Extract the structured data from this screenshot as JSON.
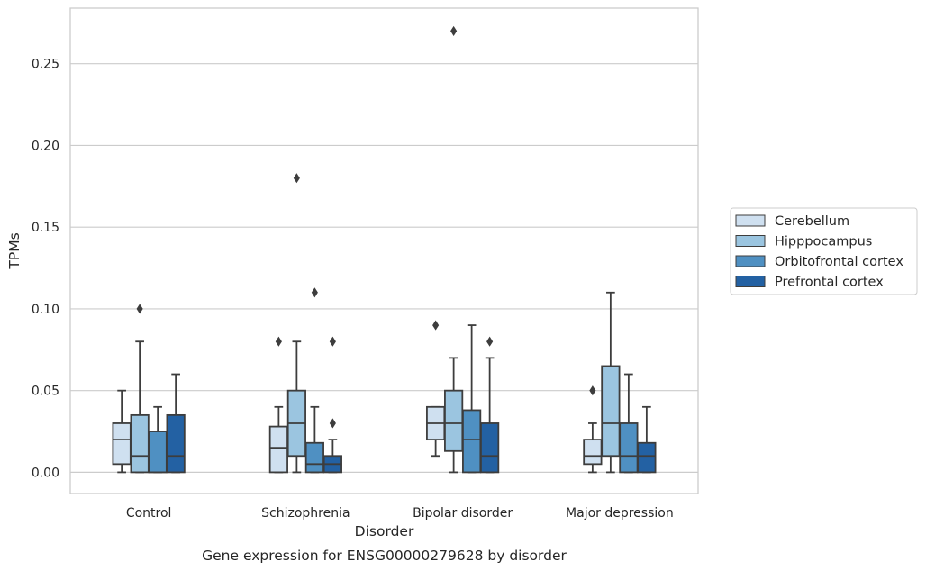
{
  "caption": "Gene expression for ENSG00000279628 by disorder",
  "colors": {
    "Cerebellum": "#cfe0f0",
    "Hipppocampus": "#9bc5e0",
    "Orbitofrontal cortex": "#4f90c2",
    "Prefrontal cortex": "#2361a3",
    "outline": "#3d3d3d",
    "grid": "#cccccc"
  },
  "chart_data": {
    "type": "box",
    "title": "",
    "xlabel": "Disorder",
    "ylabel": "TPMs",
    "ylim": [
      -0.013,
      0.284
    ],
    "yticks": [
      0.0,
      0.05,
      0.1,
      0.15,
      0.2,
      0.25
    ],
    "ytick_labels": [
      "0.00",
      "0.05",
      "0.10",
      "0.15",
      "0.20",
      "0.25"
    ],
    "grid": true,
    "legend_position": "center-right-outside",
    "categories": [
      "Control",
      "Schizophrenia",
      "Bipolar disorder",
      "Major depression"
    ],
    "series": [
      {
        "name": "Cerebellum",
        "boxes": [
          {
            "whislo": 0.0,
            "q1": 0.005,
            "med": 0.02,
            "q3": 0.03,
            "whishi": 0.05,
            "fliers": []
          },
          {
            "whislo": 0.0,
            "q1": 0.0,
            "med": 0.015,
            "q3": 0.028,
            "whishi": 0.04,
            "fliers": [
              0.08
            ]
          },
          {
            "whislo": 0.01,
            "q1": 0.02,
            "med": 0.03,
            "q3": 0.04,
            "whishi": 0.04,
            "fliers": [
              0.09
            ]
          },
          {
            "whislo": 0.0,
            "q1": 0.005,
            "med": 0.01,
            "q3": 0.02,
            "whishi": 0.03,
            "fliers": [
              0.05
            ]
          }
        ]
      },
      {
        "name": "Hipppocampus",
        "boxes": [
          {
            "whislo": 0.0,
            "q1": 0.0,
            "med": 0.01,
            "q3": 0.035,
            "whishi": 0.08,
            "fliers": [
              0.1
            ]
          },
          {
            "whislo": 0.0,
            "q1": 0.01,
            "med": 0.03,
            "q3": 0.05,
            "whishi": 0.08,
            "fliers": [
              0.18
            ]
          },
          {
            "whislo": 0.0,
            "q1": 0.013,
            "med": 0.03,
            "q3": 0.05,
            "whishi": 0.07,
            "fliers": [
              0.27
            ]
          },
          {
            "whislo": 0.0,
            "q1": 0.01,
            "med": 0.03,
            "q3": 0.065,
            "whishi": 0.11,
            "fliers": []
          }
        ]
      },
      {
        "name": "Orbitofrontal cortex",
        "boxes": [
          {
            "whislo": 0.0,
            "q1": 0.0,
            "med": 0.0,
            "q3": 0.025,
            "whishi": 0.04,
            "fliers": []
          },
          {
            "whislo": 0.0,
            "q1": 0.0,
            "med": 0.005,
            "q3": 0.018,
            "whishi": 0.04,
            "fliers": [
              0.11
            ]
          },
          {
            "whislo": 0.0,
            "q1": 0.0,
            "med": 0.02,
            "q3": 0.038,
            "whishi": 0.09,
            "fliers": []
          },
          {
            "whislo": 0.0,
            "q1": 0.0,
            "med": 0.01,
            "q3": 0.03,
            "whishi": 0.06,
            "fliers": []
          }
        ]
      },
      {
        "name": "Prefrontal cortex",
        "boxes": [
          {
            "whislo": 0.0,
            "q1": 0.0,
            "med": 0.01,
            "q3": 0.035,
            "whishi": 0.06,
            "fliers": []
          },
          {
            "whislo": 0.0,
            "q1": 0.0,
            "med": 0.005,
            "q3": 0.01,
            "whishi": 0.02,
            "fliers": [
              0.03,
              0.08
            ]
          },
          {
            "whislo": 0.0,
            "q1": 0.0,
            "med": 0.01,
            "q3": 0.03,
            "whishi": 0.07,
            "fliers": [
              0.08
            ]
          },
          {
            "whislo": 0.0,
            "q1": 0.0,
            "med": 0.01,
            "q3": 0.018,
            "whishi": 0.04,
            "fliers": []
          }
        ]
      }
    ]
  }
}
